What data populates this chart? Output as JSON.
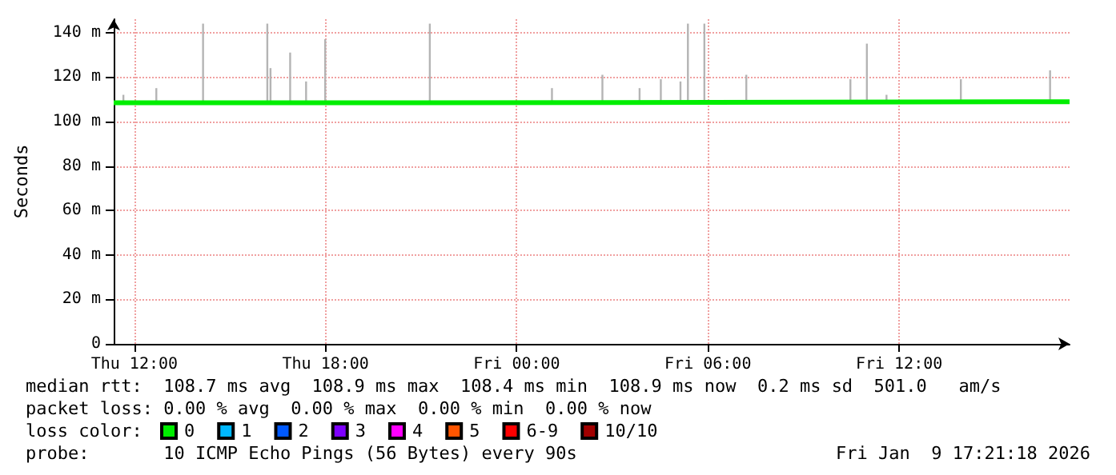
{
  "chart_data": {
    "type": "step",
    "ylabel": "Seconds",
    "legend_title": "loss color:",
    "legend": "bottom",
    "grid": true,
    "xlim": [
      "2026-01-08T11:21",
      "2026-01-09T17:21"
    ],
    "xticks": [
      {
        "value": "2026-01-08T12:00",
        "label": "Thu 12:00"
      },
      {
        "value": "2026-01-08T18:00",
        "label": "Thu 18:00"
      },
      {
        "value": "2026-01-09T00:00",
        "label": "Fri 00:00"
      },
      {
        "value": "2026-01-09T06:00",
        "label": "Fri 06:00"
      },
      {
        "value": "2026-01-09T12:00",
        "label": "Fri 12:00"
      }
    ],
    "ylim": [
      0,
      146
    ],
    "yticks": [
      0,
      {
        "value": 20,
        "label": "20 m"
      },
      {
        "value": 40,
        "label": "40 m"
      },
      {
        "value": 60,
        "label": "60 m"
      },
      {
        "value": 80,
        "label": "80 m"
      },
      {
        "value": 100,
        "label": "100 m"
      },
      {
        "value": 120,
        "label": "120 m"
      },
      {
        "value": 140,
        "label": "140 m"
      }
    ],
    "series": [
      {
        "type": "bar",
        "color": "#b4b4b4",
        "x": [
          "2026-01-08T11:39",
          "2026-01-08T12:41",
          "2026-01-08T14:09",
          "2026-01-08T16:10",
          "2026-01-08T16:16",
          "2026-01-08T16:53",
          "2026-01-08T17:23",
          "2026-01-08T17:59",
          "2026-01-08T21:16",
          "2026-01-09T01:06",
          "2026-01-09T02:41",
          "2026-01-09T03:51",
          "2026-01-09T04:31",
          "2026-01-09T05:08",
          "2026-01-09T05:22",
          "2026-01-09T05:53",
          "2026-01-09T07:12",
          "2026-01-09T10:28",
          "2026-01-09T10:59",
          "2026-01-09T11:36",
          "2026-01-09T13:56",
          "2026-01-09T16:44"
        ],
        "base": [
          108,
          108,
          108,
          108,
          108,
          108,
          108,
          108,
          108,
          108,
          108,
          108,
          108,
          108,
          108,
          108,
          108,
          108,
          108,
          108,
          108,
          108
        ],
        "values": [
          4,
          7,
          36,
          36,
          16,
          23,
          10,
          29,
          36,
          7,
          13,
          7,
          11,
          10,
          36,
          36,
          13,
          11,
          27,
          4,
          11,
          15
        ]
      },
      {
        "name": "0",
        "color": "#00ee00",
        "x": [
          "2026-01-08T11:21",
          "2026-01-08T20:54",
          "2026-01-09T17:21"
        ],
        "values": [
          108.4,
          108.9,
          108.9
        ]
      },
      {
        "name": "1",
        "color": "#00b8ff"
      },
      {
        "name": "2",
        "color": "#0059ff"
      },
      {
        "name": "3",
        "color": "#7e00ff"
      },
      {
        "name": "4",
        "color": "#ff00ff"
      },
      {
        "name": "5",
        "color": "#ff5500"
      },
      {
        "name": "6-9",
        "color": "#ff0000"
      },
      {
        "name": "10/10",
        "color": "#a10000"
      }
    ],
    "annotations": [
      "median rtt:  108.7 ms avg  108.9 ms max  108.4 ms min  108.9 ms now  0.2 ms sd  501.0   am/s",
      "packet loss: 0.00 % avg  0.00 % max  0.00 % min  0.00 % now",
      "probe:       10 ICMP Echo Pings (56 Bytes) every 90s",
      "Fri Jan  9 17:21:18 2026"
    ]
  }
}
